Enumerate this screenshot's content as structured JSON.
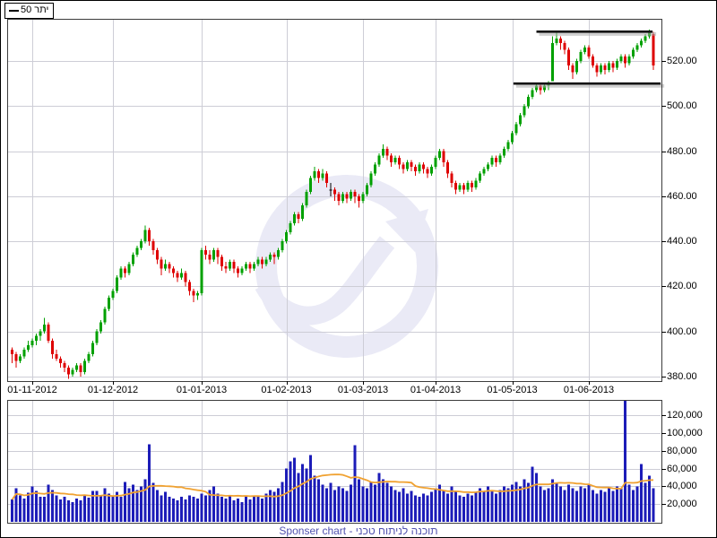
{
  "legend": {
    "label": "יתר 50"
  },
  "footer": {
    "text": "Sponser chart - תוכנה לניתוח טכני"
  },
  "colors": {
    "up": "#00A000",
    "down": "#DE0000",
    "doji": "#000000",
    "volume_bar": "#1C1CB8",
    "volume_ma": "#F0A232",
    "grid": "#CDCDD6",
    "frame": "#3C3C3C",
    "trendline": "#141414",
    "trendline_shadow": "#ABABAB",
    "watermark": "#EAEAF6",
    "footer_text": "#5152AF",
    "axis_text": "#000000",
    "background": "#FFFFFF"
  },
  "chart_data": {
    "type": "candlestick",
    "title": "יתר 50",
    "panels": [
      "price",
      "volume"
    ],
    "price_axis": {
      "tick_labels": [
        "380.00",
        "400.00",
        "420.00",
        "440.00",
        "460.00",
        "480.00",
        "500.00",
        "520.00"
      ],
      "tick_values": [
        380,
        400,
        420,
        440,
        460,
        480,
        500,
        520
      ],
      "min": 380,
      "max": 520,
      "step": 20,
      "grid": true,
      "side": "right"
    },
    "volume_axis": {
      "tick_labels": [
        "20,000",
        "40,000",
        "60,000",
        "80,000",
        "100,000",
        "120,000"
      ],
      "tick_values": [
        20000,
        40000,
        60000,
        80000,
        100000,
        120000
      ],
      "min": 0,
      "max": 140000,
      "step": 20000,
      "grid": true,
      "side": "right"
    },
    "date_axis": {
      "labels": [
        "01-11-2012",
        "01-12-2012",
        "01-01-2013",
        "01-02-2013",
        "01-03-2013",
        "01-04-2013",
        "01-05-2013",
        "01-06-2013"
      ],
      "candle_indices": [
        5,
        25,
        47,
        68,
        87,
        105,
        124,
        143
      ],
      "grid": true
    },
    "trendlines": [
      {
        "price": 533,
        "from_index": 130.0,
        "to_index": 158.8
      },
      {
        "price": 510,
        "from_index": 124.3,
        "to_index": 160.8
      }
    ],
    "volume_ma_period": 15,
    "candles_format": [
      "open",
      "high",
      "low",
      "close",
      "volume"
    ],
    "candles": [
      [
        392,
        393,
        386,
        390,
        25000
      ],
      [
        390,
        391,
        384,
        387,
        38000
      ],
      [
        387,
        390,
        386,
        389,
        30000
      ],
      [
        389,
        393,
        388,
        392,
        26000
      ],
      [
        392,
        396,
        391,
        394,
        33000
      ],
      [
        394,
        397,
        393,
        396,
        40000
      ],
      [
        396,
        399,
        394,
        398,
        35000
      ],
      [
        398,
        401,
        396,
        400,
        28000
      ],
      [
        400,
        406,
        399,
        403,
        28000
      ],
      [
        403,
        404,
        395,
        396,
        42000
      ],
      [
        396,
        397,
        388,
        390,
        36000
      ],
      [
        390,
        392,
        387,
        388,
        30000
      ],
      [
        388,
        389,
        384,
        386,
        25000
      ],
      [
        386,
        387,
        382,
        384,
        28000
      ],
      [
        384,
        385,
        379,
        381,
        24000
      ],
      [
        381,
        384,
        380,
        383,
        22000
      ],
      [
        383,
        386,
        382,
        385,
        26000
      ],
      [
        385,
        386,
        380,
        382,
        24000
      ],
      [
        382,
        388,
        381,
        387,
        30000
      ],
      [
        387,
        391,
        386,
        390,
        27000
      ],
      [
        390,
        396,
        389,
        395,
        35000
      ],
      [
        395,
        401,
        394,
        400,
        35000
      ],
      [
        400,
        405,
        399,
        404,
        30000
      ],
      [
        404,
        411,
        403,
        410,
        38000
      ],
      [
        410,
        416,
        409,
        415,
        32000
      ],
      [
        415,
        419,
        414,
        418,
        30000
      ],
      [
        418,
        425,
        417,
        424,
        34000
      ],
      [
        424,
        429,
        423,
        428,
        28000
      ],
      [
        428,
        429,
        424,
        426,
        45000
      ],
      [
        426,
        431,
        425,
        430,
        38000
      ],
      [
        430,
        435,
        429,
        434,
        42000
      ],
      [
        434,
        438,
        433,
        437,
        36000
      ],
      [
        437,
        441,
        436,
        440,
        40000
      ],
      [
        440,
        447,
        439,
        445,
        48000
      ],
      [
        445,
        446,
        438,
        440,
        87000
      ],
      [
        440,
        441,
        434,
        436,
        44000
      ],
      [
        436,
        437,
        430,
        432,
        36000
      ],
      [
        432,
        433,
        425,
        428,
        30000
      ],
      [
        428,
        432,
        427,
        430,
        34000
      ],
      [
        430,
        431,
        426,
        428,
        28000
      ],
      [
        428,
        429,
        424,
        426,
        26000
      ],
      [
        426,
        427,
        422,
        424,
        24000
      ],
      [
        424,
        428,
        423,
        426,
        28000
      ],
      [
        426,
        427,
        420,
        422,
        25000
      ],
      [
        422,
        423,
        416,
        418,
        30000
      ],
      [
        418,
        419,
        413,
        416,
        28000
      ],
      [
        416,
        418,
        414,
        417,
        26000
      ],
      [
        417,
        437,
        416,
        436,
        32000
      ],
      [
        436,
        438,
        432,
        434,
        30000
      ],
      [
        434,
        436,
        430,
        432,
        36000
      ],
      [
        432,
        437,
        431,
        436,
        40000
      ],
      [
        436,
        437,
        430,
        433,
        32000
      ],
      [
        433,
        434,
        427,
        429,
        28000
      ],
      [
        429,
        431,
        426,
        428,
        26000
      ],
      [
        428,
        432,
        427,
        431,
        30000
      ],
      [
        431,
        432,
        426,
        428,
        24000
      ],
      [
        428,
        429,
        424,
        426,
        26000
      ],
      [
        426,
        429,
        425,
        428,
        22000
      ],
      [
        428,
        431,
        427,
        430,
        28000
      ],
      [
        430,
        431,
        426,
        428,
        25000
      ],
      [
        428,
        431,
        427,
        430,
        30000
      ],
      [
        430,
        433,
        429,
        432,
        28000
      ],
      [
        432,
        433,
        428,
        430,
        26000
      ],
      [
        430,
        433,
        429,
        432,
        32000
      ],
      [
        432,
        435,
        431,
        434,
        36000
      ],
      [
        434,
        435,
        430,
        433,
        34000
      ],
      [
        433,
        437,
        432,
        436,
        38000
      ],
      [
        436,
        441,
        435,
        440,
        45000
      ],
      [
        440,
        445,
        439,
        444,
        60000
      ],
      [
        444,
        449,
        443,
        448,
        68000
      ],
      [
        448,
        453,
        447,
        452,
        72000
      ],
      [
        452,
        453,
        448,
        450,
        55000
      ],
      [
        450,
        457,
        449,
        456,
        65000
      ],
      [
        456,
        463,
        455,
        462,
        60000
      ],
      [
        462,
        469,
        461,
        468,
        75000
      ],
      [
        468,
        473,
        467,
        471,
        52000
      ],
      [
        471,
        472,
        466,
        468,
        48000
      ],
      [
        468,
        472,
        467,
        470,
        42000
      ],
      [
        470,
        471,
        464,
        466,
        38000
      ],
      [
        463,
        466,
        460,
        463,
        44000
      ],
      [
        463,
        464,
        458,
        461,
        36000
      ],
      [
        461,
        462,
        456,
        458,
        40000
      ],
      [
        458,
        462,
        457,
        461,
        38000
      ],
      [
        461,
        462,
        457,
        459,
        35000
      ],
      [
        459,
        463,
        458,
        462,
        42000
      ],
      [
        462,
        463,
        457,
        460,
        86000
      ],
      [
        460,
        461,
        455,
        458,
        48000
      ],
      [
        458,
        462,
        457,
        461,
        40000
      ],
      [
        461,
        466,
        460,
        465,
        38000
      ],
      [
        465,
        471,
        464,
        470,
        45000
      ],
      [
        470,
        475,
        469,
        474,
        42000
      ],
      [
        474,
        479,
        473,
        478,
        55000
      ],
      [
        478,
        483,
        477,
        481,
        48000
      ],
      [
        481,
        482,
        476,
        478,
        44000
      ],
      [
        478,
        479,
        473,
        475,
        40000
      ],
      [
        475,
        478,
        474,
        477,
        36000
      ],
      [
        477,
        478,
        472,
        474,
        34000
      ],
      [
        474,
        475,
        470,
        472,
        38000
      ],
      [
        472,
        476,
        471,
        475,
        32000
      ],
      [
        475,
        476,
        471,
        473,
        35000
      ],
      [
        473,
        474,
        469,
        471,
        30000
      ],
      [
        471,
        475,
        470,
        474,
        28000
      ],
      [
        474,
        475,
        470,
        472,
        32000
      ],
      [
        472,
        473,
        468,
        470,
        30000
      ],
      [
        470,
        474,
        469,
        473,
        34000
      ],
      [
        473,
        478,
        472,
        477,
        38000
      ],
      [
        477,
        481,
        476,
        480,
        42000
      ],
      [
        480,
        481,
        473,
        475,
        36000
      ],
      [
        475,
        476,
        468,
        470,
        32000
      ],
      [
        470,
        471,
        464,
        466,
        40000
      ],
      [
        466,
        467,
        461,
        463,
        35000
      ],
      [
        463,
        466,
        462,
        465,
        30000
      ],
      [
        465,
        466,
        461,
        463,
        28000
      ],
      [
        463,
        467,
        462,
        466,
        32000
      ],
      [
        466,
        467,
        462,
        464,
        30000
      ],
      [
        464,
        468,
        463,
        467,
        34000
      ],
      [
        467,
        471,
        466,
        470,
        38000
      ],
      [
        470,
        473,
        469,
        472,
        35000
      ],
      [
        472,
        475,
        471,
        474,
        40000
      ],
      [
        474,
        478,
        473,
        477,
        36000
      ],
      [
        477,
        478,
        473,
        475,
        32000
      ],
      [
        475,
        479,
        474,
        478,
        36000
      ],
      [
        478,
        482,
        477,
        481,
        40000
      ],
      [
        481,
        485,
        480,
        484,
        38000
      ],
      [
        484,
        489,
        483,
        488,
        42000
      ],
      [
        488,
        493,
        487,
        492,
        45000
      ],
      [
        492,
        497,
        491,
        496,
        40000
      ],
      [
        496,
        501,
        495,
        500,
        48000
      ],
      [
        500,
        505,
        499,
        504,
        44000
      ],
      [
        504,
        508,
        503,
        507,
        62000
      ],
      [
        507,
        510,
        506,
        509,
        55000
      ],
      [
        509,
        510,
        505,
        507,
        40000
      ],
      [
        507,
        510,
        506,
        509,
        36000
      ],
      [
        509,
        511,
        507,
        510,
        38000
      ],
      [
        511,
        531,
        511,
        528,
        48000
      ],
      [
        528,
        533,
        527,
        530,
        44000
      ],
      [
        530,
        531,
        525,
        528,
        40000
      ],
      [
        528,
        529,
        523,
        525,
        36000
      ],
      [
        525,
        526,
        516,
        518,
        42000
      ],
      [
        518,
        519,
        512,
        515,
        38000
      ],
      [
        515,
        521,
        514,
        520,
        35000
      ],
      [
        520,
        525,
        519,
        524,
        40000
      ],
      [
        524,
        527,
        523,
        526,
        38000
      ],
      [
        526,
        527,
        521,
        522,
        42000
      ],
      [
        522,
        523,
        517,
        518,
        36000
      ],
      [
        518,
        519,
        513,
        515,
        32000
      ],
      [
        515,
        519,
        514,
        518,
        36000
      ],
      [
        518,
        519,
        514,
        516,
        34000
      ],
      [
        516,
        520,
        515,
        519,
        38000
      ],
      [
        519,
        520,
        515,
        517,
        35000
      ],
      [
        517,
        521,
        516,
        520,
        40000
      ],
      [
        520,
        523,
        519,
        522,
        38000
      ],
      [
        522,
        523,
        517,
        519,
        136000
      ],
      [
        519,
        523,
        518,
        522,
        42000
      ],
      [
        522,
        526,
        521,
        525,
        36000
      ],
      [
        525,
        528,
        524,
        527,
        40000
      ],
      [
        527,
        530,
        526,
        529,
        65000
      ],
      [
        529,
        532,
        528,
        531,
        44000
      ],
      [
        531,
        534,
        530,
        533,
        52000
      ],
      [
        532,
        533,
        516,
        518,
        38000
      ]
    ]
  }
}
